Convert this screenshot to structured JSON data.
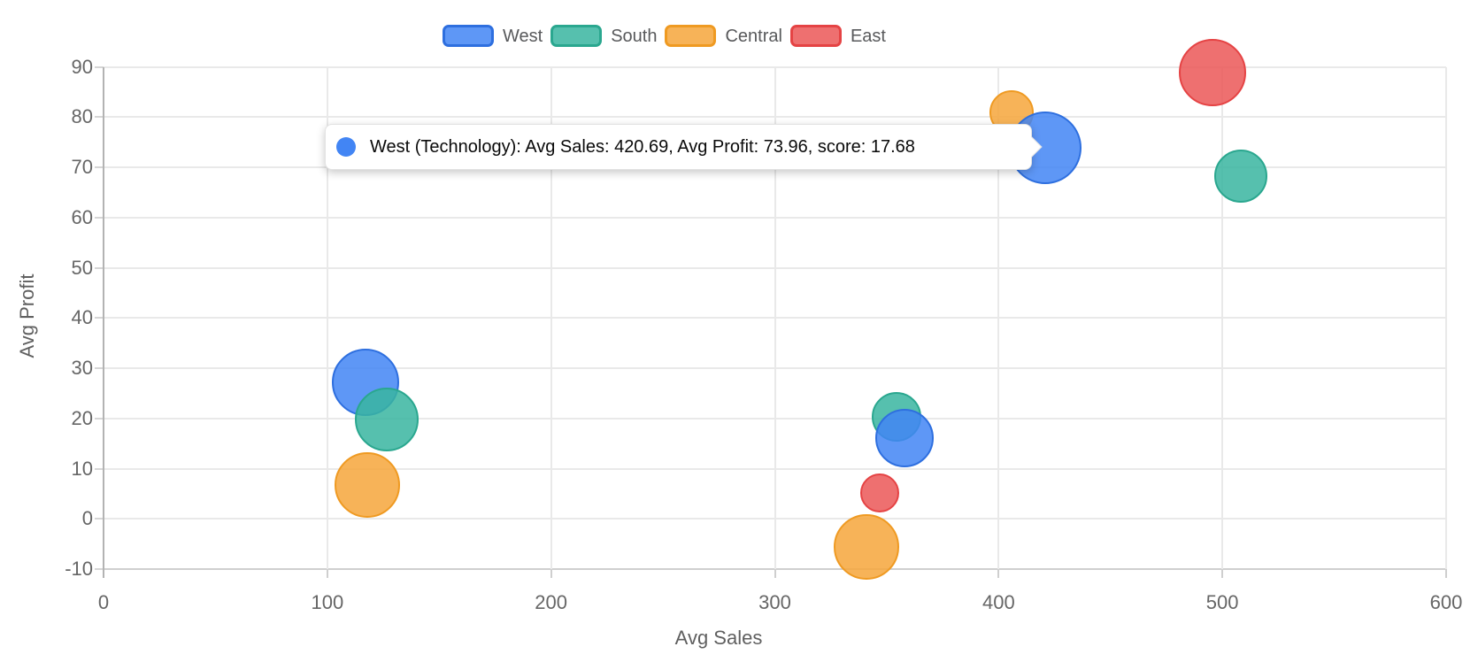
{
  "chart_data": {
    "type": "bubble",
    "title": "",
    "xlabel": "Avg Sales",
    "ylabel": "Avg Profit",
    "xlim": [
      0,
      600
    ],
    "ylim": [
      -10,
      90
    ],
    "x_tick_labels": [
      "0",
      "100",
      "200",
      "300",
      "400",
      "500",
      "600"
    ],
    "y_tick_labels": [
      "-10",
      "0",
      "10",
      "20",
      "30",
      "40",
      "50",
      "60",
      "70",
      "80",
      "90"
    ],
    "grid": true,
    "legend_position": "top",
    "series": [
      {
        "name": "West",
        "color": "#4285F4",
        "border_color": "#2e6fdf",
        "points": [
          {
            "x": 117.1,
            "y": 27.2,
            "r": 38,
            "z": 1
          },
          {
            "x": 358.0,
            "y": 16.1,
            "r": 33,
            "z": 8
          },
          {
            "x": 420.69,
            "y": 73.96,
            "r": 41,
            "z": 9
          }
        ]
      },
      {
        "name": "South",
        "color": "#38B5A0",
        "border_color": "#2aa78f",
        "points": [
          {
            "x": 126.6,
            "y": 19.8,
            "r": 36,
            "z": 2
          },
          {
            "x": 354.4,
            "y": 20.4,
            "r": 28,
            "z": 4
          },
          {
            "x": 508.3,
            "y": 68.2,
            "r": 30,
            "z": 11
          }
        ]
      },
      {
        "name": "Central",
        "color": "#F6A63B",
        "border_color": "#ef9a22",
        "points": [
          {
            "x": 117.9,
            "y": 6.7,
            "r": 37,
            "z": 3
          },
          {
            "x": 341.0,
            "y": -5.6,
            "r": 37,
            "z": 6
          },
          {
            "x": 405.9,
            "y": 80.9,
            "r": 25,
            "z": 7
          }
        ]
      },
      {
        "name": "East",
        "color": "#EB5757",
        "border_color": "#e54344",
        "points": [
          {
            "x": 346.9,
            "y": 5.1,
            "r": 22,
            "z": 5
          },
          {
            "x": 495.6,
            "y": 88.8,
            "r": 38,
            "z": 10
          }
        ]
      }
    ],
    "tooltip": {
      "series": "West",
      "category": "Technology",
      "avg_sales": 420.69,
      "avg_profit": 73.96,
      "score": 17.68,
      "label": "West (Technology): Avg Sales: 420.69, Avg Profit: 73.96, score: 17.68"
    }
  }
}
